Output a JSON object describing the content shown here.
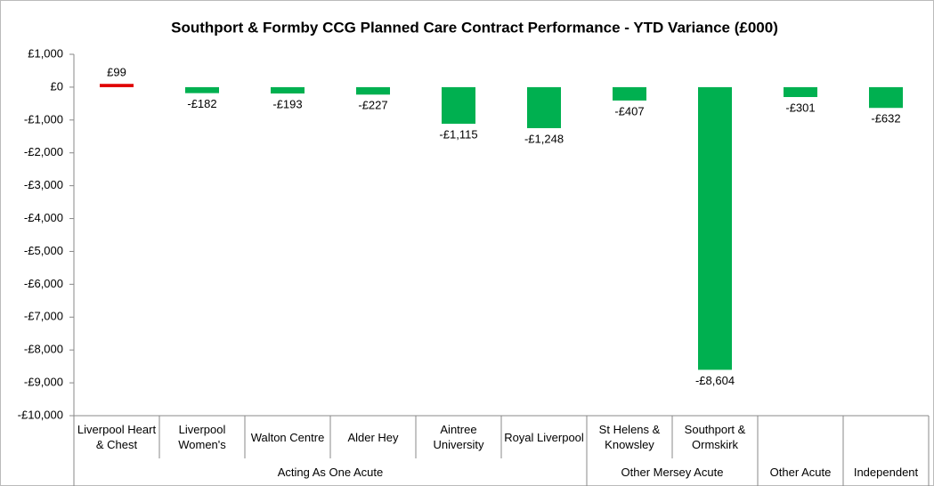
{
  "chart_data": {
    "type": "bar",
    "title": "Southport & Formby CCG Planned Care Contract Performance - YTD Variance (£000)",
    "groups": [
      {
        "name": "Acting As One Acute",
        "categories": [
          "Liverpool Heart & Chest",
          "Liverpool Women's",
          "Walton Centre",
          "Alder Hey",
          "Aintree University",
          "Royal Liverpool"
        ]
      },
      {
        "name": "Other Mersey Acute",
        "categories": [
          "St Helens & Knowsley",
          "Southport & Ormskirk"
        ]
      },
      {
        "name": "Other Acute",
        "categories": [
          null
        ]
      },
      {
        "name": "Independent",
        "categories": [
          null
        ]
      }
    ],
    "values": [
      99,
      -182,
      -193,
      -227,
      -1115,
      -1248,
      -407,
      -8604,
      -301,
      -632
    ],
    "value_labels": [
      "£99",
      "-£182",
      "-£193",
      "-£227",
      "-£1,115",
      "-£1,248",
      "-£407",
      "-£8,604",
      "-£301",
      "-£632"
    ],
    "colors": [
      "#e00000",
      "#00b050",
      "#00b050",
      "#00b050",
      "#00b050",
      "#00b050",
      "#00b050",
      "#00b050",
      "#00b050",
      "#00b050"
    ],
    "ylim": [
      -10000,
      1000
    ],
    "yticks": [
      {
        "value": 1000,
        "label": "£1,000"
      },
      {
        "value": 0,
        "label": "£0"
      },
      {
        "value": -1000,
        "label": "-£1,000"
      },
      {
        "value": -2000,
        "label": "-£2,000"
      },
      {
        "value": -3000,
        "label": "-£3,000"
      },
      {
        "value": -4000,
        "label": "-£4,000"
      },
      {
        "value": -5000,
        "label": "-£5,000"
      },
      {
        "value": -6000,
        "label": "-£6,000"
      },
      {
        "value": -7000,
        "label": "-£7,000"
      },
      {
        "value": -8000,
        "label": "-£8,000"
      },
      {
        "value": -9000,
        "label": "-£9,000"
      },
      {
        "value": -10000,
        "label": "-£10,000"
      }
    ],
    "grid": false
  }
}
